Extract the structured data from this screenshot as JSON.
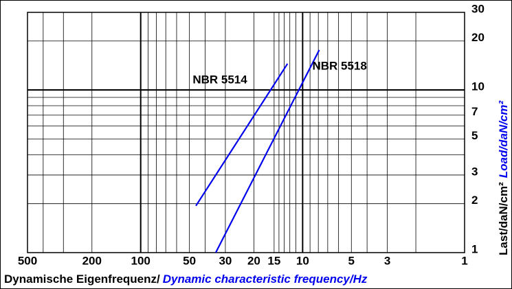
{
  "chart_data": {
    "type": "line",
    "x_label": "Dynamische Eigenfrequenz/",
    "x_label_en": "Dynamic characteristic frequency/Hz",
    "y_label": "Last/daN/cm²",
    "y_label_en": "Load/daN/cm²",
    "xscale": "log",
    "yscale": "log",
    "x_reversed": true,
    "xlim": [
      500,
      1
    ],
    "ylim": [
      1,
      30
    ],
    "xticks": [
      500,
      200,
      100,
      50,
      30,
      20,
      15,
      10,
      5,
      3,
      1
    ],
    "yticks": [
      1,
      2,
      3,
      5,
      7,
      10,
      20,
      30
    ],
    "x_grid": [
      400,
      300,
      200,
      100,
      90,
      80,
      70,
      60,
      50,
      40,
      30,
      20,
      15,
      14,
      13,
      12,
      11,
      10,
      9,
      8,
      7,
      6,
      5,
      4,
      3,
      2
    ],
    "y_grid": [
      2,
      3,
      4,
      5,
      6,
      7,
      8,
      9,
      10,
      20
    ],
    "x_major_grid": [
      100,
      10
    ],
    "y_major_grid": [
      10
    ],
    "series": [
      {
        "name": "NBR 5514",
        "color": "#0000ee",
        "x": [
          45.6,
          12.4
        ],
        "values": [
          1.94,
          14.5
        ]
      },
      {
        "name": "NBR 5518",
        "color": "#0000ee",
        "x": [
          34.4,
          7.9
        ],
        "values": [
          1,
          17.6
        ]
      }
    ]
  }
}
